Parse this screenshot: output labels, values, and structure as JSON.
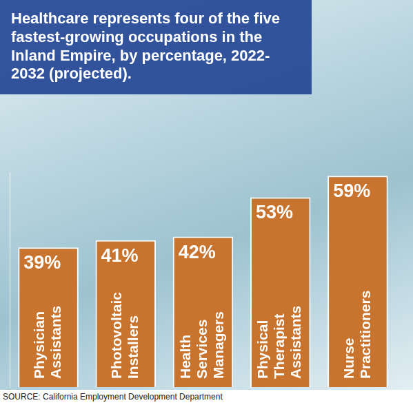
{
  "chart_data": {
    "type": "bar",
    "title": "Healthcare represents four of the five fastest-growing occupations in the Inland Empire, by percentage, 2022-2032 (projected).",
    "source": "SOURCE: California Employment Development Department",
    "categories": [
      "Physician Assistants",
      "Photovoltaic Installers",
      "Health Services Managers",
      "Physical Therapist Assistants",
      "Nurse Practitioners"
    ],
    "values": [
      39,
      41,
      42,
      53,
      59
    ],
    "value_labels": [
      "39%",
      "41%",
      "42%",
      "53%",
      "59%"
    ],
    "color": "#c8742f",
    "ylim": [
      0,
      60
    ],
    "grid": false,
    "data_labels": true,
    "tick_labels": false
  }
}
